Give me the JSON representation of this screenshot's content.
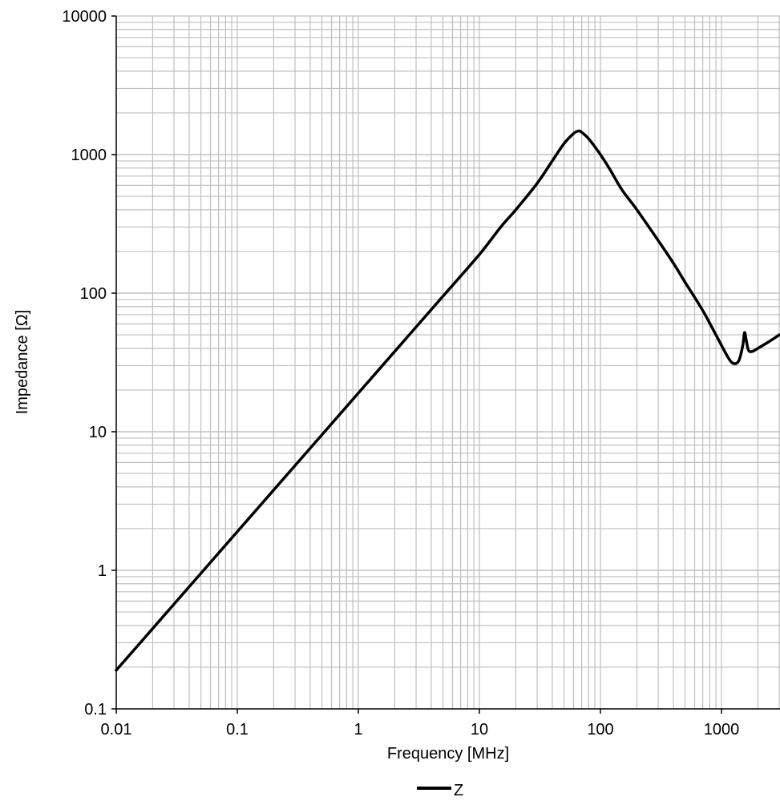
{
  "chart_data": {
    "type": "line",
    "xscale": "log",
    "yscale": "log",
    "xlim": [
      0.01,
      3000
    ],
    "ylim": [
      0.1,
      10000
    ],
    "xlabel": "Frequency [MHz]",
    "ylabel": "Impedance [Ω]",
    "x_ticks": [
      "0.01",
      "0.1",
      "1",
      "10",
      "100",
      "1000"
    ],
    "y_ticks": [
      "0.1",
      "1",
      "10",
      "100",
      "1000",
      "10000"
    ],
    "grid": true,
    "legend_position": "bottom-center",
    "colors": {
      "line": "#000000",
      "grid": "#bfbfbf",
      "axis": "#000000"
    },
    "series": [
      {
        "name": "Z",
        "x": [
          0.01,
          0.02,
          0.05,
          0.1,
          0.2,
          0.5,
          1,
          2,
          5,
          10,
          15,
          20,
          30,
          40,
          50,
          60,
          66,
          70,
          80,
          100,
          120,
          150,
          200,
          300,
          400,
          500,
          700,
          900,
          1100,
          1200,
          1300,
          1400,
          1500,
          1550,
          1600,
          1650,
          1700,
          1800,
          2000,
          2500,
          3000
        ],
        "y": [
          0.19,
          0.38,
          0.95,
          1.9,
          3.8,
          9.5,
          19,
          38,
          95,
          190,
          300,
          400,
          620,
          900,
          1200,
          1420,
          1480,
          1450,
          1300,
          1000,
          780,
          560,
          400,
          240,
          165,
          120,
          75,
          50,
          36,
          32,
          31,
          33,
          42,
          52,
          46,
          40,
          38,
          38,
          40,
          45,
          50
        ]
      }
    ]
  }
}
